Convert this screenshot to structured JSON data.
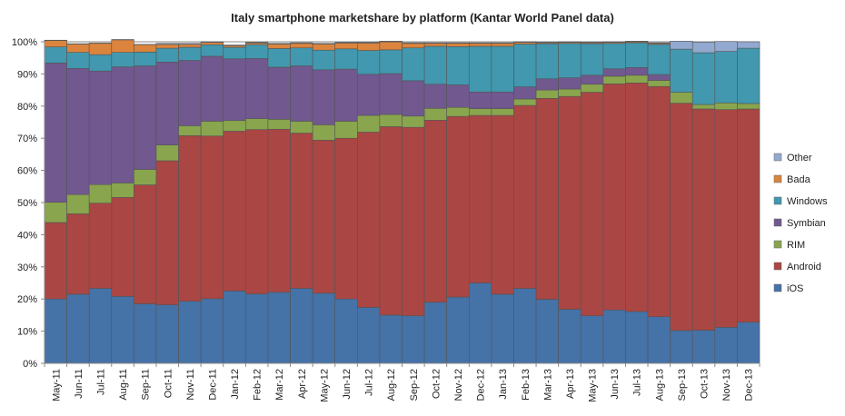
{
  "chart_data": {
    "type": "bar",
    "stacked": true,
    "title": "Italy smartphone marketshare by platform (Kantar World Panel data)",
    "xlabel": "",
    "ylabel": "",
    "ylim": [
      0,
      100
    ],
    "y_ticks": [
      "0%",
      "10%",
      "20%",
      "30%",
      "40%",
      "50%",
      "60%",
      "70%",
      "80%",
      "90%",
      "100%"
    ],
    "grid": true,
    "legend_position": "right",
    "categories": [
      "May-11",
      "Jun-11",
      "Jul-11",
      "Aug-11",
      "Sep-11",
      "Oct-11",
      "Nov-11",
      "Dec-11",
      "Jan-12",
      "Feb-12",
      "Mar-12",
      "Apr-12",
      "May-12",
      "Jun-12",
      "Jul-12",
      "Aug-12",
      "Sep-12",
      "Oct-12",
      "Nov-12",
      "Dec-12",
      "Jan-13",
      "Feb-13",
      "Mar-13",
      "Apr-13",
      "May-13",
      "Jun-13",
      "Jul-13",
      "Aug-13",
      "Sep-13",
      "Oct-13",
      "Nov-13",
      "Dec-13"
    ],
    "series": [
      {
        "name": "iOS",
        "color": "#4572a7",
        "values": [
          20,
          21.5,
          23.3,
          20.8,
          18.5,
          18.2,
          19.3,
          20.1,
          22.5,
          21.6,
          22.1,
          23.3,
          21.8,
          20,
          17.4,
          15,
          14.8,
          19,
          20.6,
          25,
          21.5,
          23.3,
          19.9,
          16.8,
          14.8,
          16.6,
          16.1,
          14.5,
          10.2,
          10.3,
          11.2,
          12.8
        ]
      },
      {
        "name": "Android",
        "color": "#aa4643",
        "values": [
          23.8,
          25,
          26.5,
          30.8,
          37,
          44.8,
          51.5,
          50.6,
          49.7,
          51.1,
          50.7,
          48.3,
          47.6,
          50,
          54.5,
          58.6,
          58.6,
          56.6,
          56.2,
          52.1,
          55.6,
          56.9,
          62.5,
          66.2,
          69.5,
          70.3,
          71.1,
          71.6,
          70.7,
          68.8,
          67.7,
          66.3
        ]
      },
      {
        "name": "RIM",
        "color": "#89a54e",
        "values": [
          6.3,
          6,
          5.8,
          4.5,
          4.8,
          4.9,
          3.1,
          4.6,
          3.3,
          3.4,
          3.1,
          3.7,
          4.8,
          5.3,
          5.2,
          3.8,
          3.5,
          3.7,
          2.8,
          2.1,
          2.1,
          2,
          2.6,
          2.3,
          2.5,
          2.4,
          2.4,
          1.9,
          3.4,
          1.4,
          2.1,
          1.7
        ]
      },
      {
        "name": "Symbian",
        "color": "#71588f",
        "values": [
          43.3,
          39.2,
          35.3,
          36.1,
          32.2,
          25.8,
          20.3,
          20.2,
          19.2,
          18.7,
          16.2,
          17.2,
          17.1,
          16.2,
          12.8,
          12.7,
          11,
          7.5,
          7,
          5.2,
          5.2,
          3.8,
          3.5,
          3.5,
          2.8,
          2.3,
          2.4,
          1.8,
          0,
          0,
          0,
          0
        ]
      },
      {
        "name": "Windows",
        "color": "#4198af",
        "values": [
          5,
          5,
          5.1,
          4.5,
          4.3,
          4.3,
          4.1,
          3.6,
          3.6,
          4.3,
          5.8,
          5.6,
          6.1,
          6.3,
          7.4,
          7.4,
          10.2,
          11.8,
          11.9,
          14.2,
          14.2,
          13.3,
          10.9,
          10.7,
          9.8,
          7.9,
          7.7,
          9.4,
          13.4,
          16.1,
          16,
          17.2
        ]
      },
      {
        "name": "Bada",
        "color": "#db843d",
        "values": [
          2,
          2.6,
          3.5,
          3.9,
          2.3,
          1.2,
          0.9,
          0.7,
          0.5,
          0.5,
          1.4,
          1.4,
          1.9,
          1.8,
          2.3,
          2.5,
          1.4,
          0.9,
          1,
          0.9,
          0.9,
          0.5,
          0.3,
          0.3,
          0.3,
          0.3,
          0.3,
          0.3,
          0,
          0,
          0,
          0
        ]
      },
      {
        "name": "Other",
        "color": "#93a9cf",
        "values": [
          0.1,
          0.1,
          0.1,
          0.1,
          0.1,
          0.3,
          0.3,
          0.2,
          0.2,
          0.2,
          0.2,
          0.2,
          0.2,
          0.2,
          0.2,
          0.2,
          0.2,
          0.2,
          0.2,
          0.2,
          0.2,
          0.2,
          0.2,
          0.2,
          0.2,
          0.2,
          0.2,
          0.2,
          2.5,
          3.3,
          3.1,
          2
        ]
      }
    ]
  }
}
